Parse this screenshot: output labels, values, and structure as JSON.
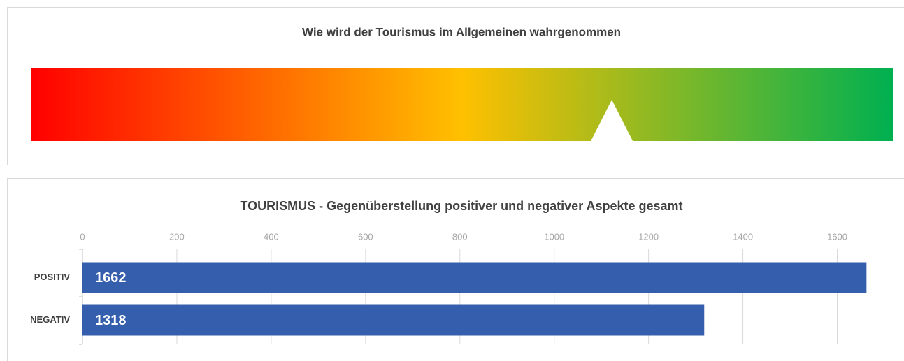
{
  "chart_data": [
    {
      "type": "gauge",
      "title": "Wie wird der Tourismus im Allgemeinen wahrgenommen",
      "value": 0.674,
      "xlim": [
        0,
        1
      ],
      "colors": [
        "#ff0000",
        "#ffc000",
        "#00b050"
      ]
    },
    {
      "type": "barh",
      "title": "TOURISMUS - Gegenüberstellung positiver und negativer Aspekte gesamt",
      "categories": [
        "POSITIV",
        "NEGATIV"
      ],
      "values": [
        1662,
        1318
      ],
      "color": "#355fad",
      "xlim": [
        0,
        1700
      ],
      "xticks": [
        0,
        200,
        400,
        600,
        800,
        1000,
        1200,
        1400,
        1600
      ],
      "grid": true
    }
  ]
}
